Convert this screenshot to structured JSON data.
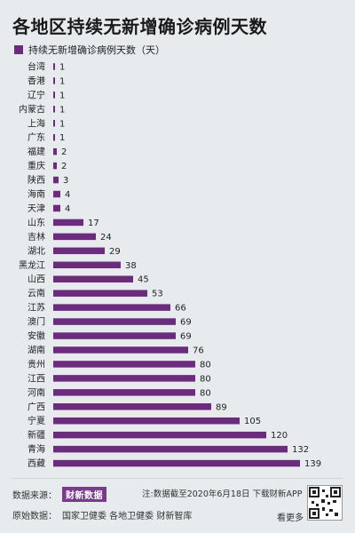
{
  "title": "各地区持续无新增确诊病例天数",
  "legend_label": "持续无新增确诊病例天数（天）",
  "colors": {
    "bar": "#6b2c7e",
    "background": "#e7ebed"
  },
  "chart_data": {
    "type": "bar",
    "orientation": "horizontal",
    "title": "各地区持续无新增确诊病例天数",
    "series": [
      {
        "name": "持续无新增确诊病例天数（天）"
      }
    ],
    "categories": [
      "台湾",
      "香港",
      "辽宁",
      "内蒙古",
      "上海",
      "广东",
      "福建",
      "重庆",
      "陕西",
      "海南",
      "天津",
      "山东",
      "吉林",
      "湖北",
      "黑龙江",
      "山西",
      "云南",
      "江苏",
      "澳门",
      "安徽",
      "湖南",
      "贵州",
      "江西",
      "河南",
      "广西",
      "宁夏",
      "新疆",
      "青海",
      "西藏"
    ],
    "values": [
      1,
      1,
      1,
      1,
      1,
      1,
      2,
      2,
      3,
      4,
      4,
      17,
      24,
      29,
      38,
      45,
      53,
      66,
      69,
      69,
      76,
      80,
      80,
      80,
      89,
      105,
      120,
      132,
      139
    ],
    "xlim": [
      0,
      139
    ]
  },
  "footer": {
    "source_label": "数据来源：",
    "source_brand": "财新数据",
    "note": "注:数据截至2020年6月18日 下载财新APP",
    "original_label": "原始数据：",
    "original_sources": "国家卫健委  各地卫健委  财新智库",
    "see_more": "看更多"
  }
}
